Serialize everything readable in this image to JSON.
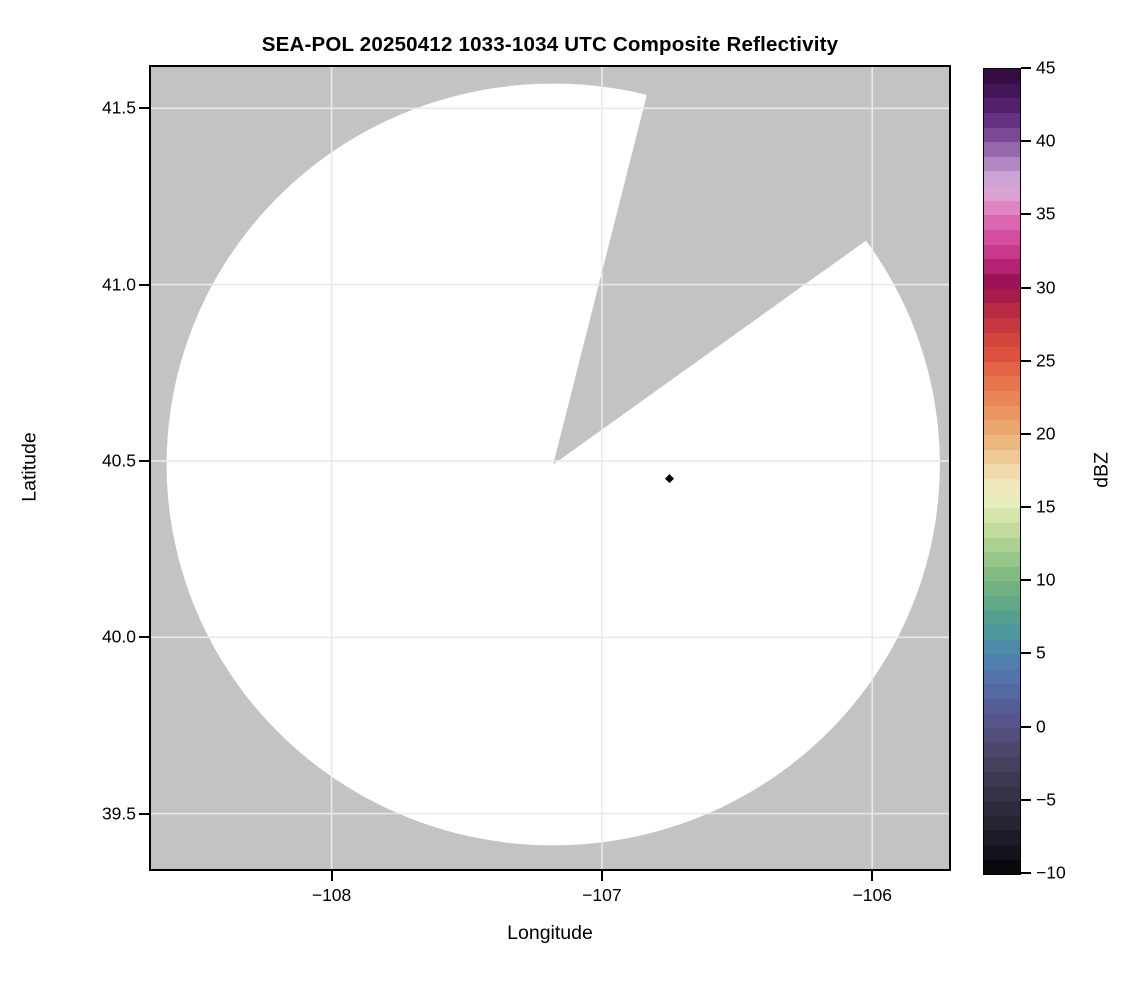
{
  "title": "SEA-POL 20250412 1033-1034 UTC Composite Reflectivity",
  "chart_data": {
    "type": "heatmap",
    "subtype": "radar_ppi_composite_reflectivity",
    "title": "SEA-POL 20250412 1033-1034 UTC Composite Reflectivity",
    "xlabel": "Longitude",
    "ylabel": "Latitude",
    "xlim": [
      -108.668,
      -105.716
    ],
    "ylim": [
      39.343,
      41.617
    ],
    "grid": true,
    "x_ticks": [
      {
        "value": -108,
        "label": "−108"
      },
      {
        "value": -107,
        "label": "−107"
      },
      {
        "value": -106,
        "label": "−106"
      }
    ],
    "y_ticks": [
      {
        "value": 41.5,
        "label": "41.5"
      },
      {
        "value": 41.0,
        "label": "41.0"
      },
      {
        "value": 40.5,
        "label": "40.5"
      },
      {
        "value": 40.0,
        "label": "40.0"
      },
      {
        "value": 39.5,
        "label": "39.5"
      }
    ],
    "colorbar": {
      "label": "dBZ",
      "min": -10,
      "max": 45,
      "tick_step": 5,
      "band_dbz": 1,
      "position": "right",
      "ticks": [
        {
          "value": 45,
          "label": "45"
        },
        {
          "value": 40,
          "label": "40"
        },
        {
          "value": 35,
          "label": "35"
        },
        {
          "value": 30,
          "label": "30"
        },
        {
          "value": 25,
          "label": "25"
        },
        {
          "value": 20,
          "label": "20"
        },
        {
          "value": 15,
          "label": "15"
        },
        {
          "value": 10,
          "label": "10"
        },
        {
          "value": 5,
          "label": "5"
        },
        {
          "value": 0,
          "label": "0"
        },
        {
          "value": -5,
          "label": "−5"
        },
        {
          "value": -10,
          "label": "−10"
        }
      ]
    },
    "radar_site": {
      "lon": -107.18,
      "lat": 40.49
    },
    "coverage_radius_deg": {
      "lon": 1.43,
      "lat": 1.08
    },
    "blocked_sector_azimuth_deg": [
      14,
      54
    ],
    "echo_points": [
      {
        "lon": -106.75,
        "lat": 40.45,
        "dbz": -10
      }
    ],
    "colors": {
      "outside_coverage": "#c3c3c3",
      "coverage_no_echo": "#ffffff",
      "grid": "#e9e9e9",
      "spine": "#000000"
    },
    "colormap_stops": [
      [
        45,
        "#2d0838"
      ],
      [
        43,
        "#4b1a63"
      ],
      [
        41,
        "#6f3a8c"
      ],
      [
        39.5,
        "#9568ac"
      ],
      [
        38,
        "#c098cf"
      ],
      [
        37,
        "#d9abda"
      ],
      [
        36,
        "#df97cc"
      ],
      [
        35,
        "#dd74b8"
      ],
      [
        33.5,
        "#d54da0"
      ],
      [
        32,
        "#c22d80"
      ],
      [
        31,
        "#a81762"
      ],
      [
        30.2,
        "#981150"
      ],
      [
        29.5,
        "#a51c4a"
      ],
      [
        28.5,
        "#b82a44"
      ],
      [
        27,
        "#cc3e3c"
      ],
      [
        25.5,
        "#dc523f"
      ],
      [
        24,
        "#e66c4a"
      ],
      [
        22.5,
        "#ea8656"
      ],
      [
        21,
        "#eb9d64"
      ],
      [
        19.5,
        "#ecb87e"
      ],
      [
        18,
        "#f0d2a0"
      ],
      [
        16.8,
        "#f3e6bc"
      ],
      [
        15.8,
        "#eeeec2"
      ],
      [
        15,
        "#dfe9b2"
      ],
      [
        13.5,
        "#c2da9c"
      ],
      [
        12,
        "#a3cc8e"
      ],
      [
        10.5,
        "#83ba82"
      ],
      [
        9,
        "#66ac82"
      ],
      [
        7.5,
        "#53a090"
      ],
      [
        6,
        "#4c92a4"
      ],
      [
        5,
        "#4c84ae"
      ],
      [
        3.5,
        "#5274aa"
      ],
      [
        2,
        "#55629c"
      ],
      [
        0.5,
        "#56548a"
      ],
      [
        -1,
        "#514b74"
      ],
      [
        -3,
        "#423c58"
      ],
      [
        -5,
        "#332e42"
      ],
      [
        -7,
        "#23202e"
      ],
      [
        -9,
        "#120f18"
      ],
      [
        -10,
        "#000000"
      ]
    ]
  }
}
